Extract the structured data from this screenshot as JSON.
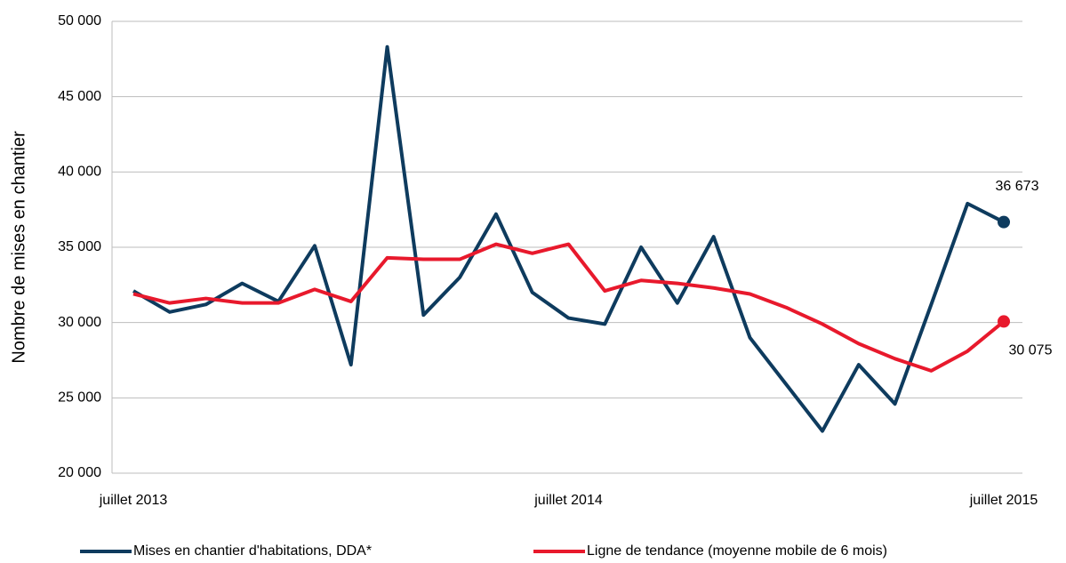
{
  "chart_data": {
    "type": "line",
    "y_label": "Nombre de mises en chantier",
    "categories": [
      "juillet 2013",
      null,
      null,
      null,
      null,
      null,
      null,
      null,
      null,
      null,
      null,
      null,
      "juillet 2014",
      null,
      null,
      null,
      null,
      null,
      null,
      null,
      null,
      null,
      null,
      null,
      "juillet 2015"
    ],
    "series": [
      {
        "name": "Mises en chantier d'habitations, DDA*",
        "color": "#0e3b5e",
        "values": [
          32100,
          30700,
          31200,
          32600,
          31400,
          35100,
          27200,
          48300,
          30500,
          33000,
          37200,
          32000,
          30300,
          29900,
          35000,
          31300,
          35700,
          29000,
          25900,
          22800,
          27200,
          24600,
          31200,
          37900,
          36673
        ],
        "value_labels": [
          null,
          null,
          null,
          null,
          null,
          null,
          null,
          null,
          null,
          null,
          null,
          null,
          null,
          null,
          null,
          null,
          null,
          null,
          null,
          null,
          null,
          null,
          null,
          null,
          "36 673"
        ]
      },
      {
        "name": "Ligne de tendance (moyenne mobile de 6 mois)",
        "color": "#e8192c",
        "values": [
          31900,
          31300,
          31600,
          31300,
          31300,
          32200,
          31400,
          34300,
          34200,
          34200,
          35200,
          34600,
          35200,
          32100,
          32800,
          32600,
          32300,
          31900,
          31000,
          29900,
          28600,
          27600,
          26800,
          28100,
          30075
        ],
        "value_labels": [
          null,
          null,
          null,
          null,
          null,
          null,
          null,
          null,
          null,
          null,
          null,
          null,
          null,
          null,
          null,
          null,
          null,
          null,
          null,
          null,
          null,
          null,
          null,
          null,
          "30 075"
        ]
      }
    ],
    "ylim": [
      20000,
      50000
    ],
    "yticks": [
      {
        "value": 20000,
        "label": "20 000"
      },
      {
        "value": 25000,
        "label": "25 000"
      },
      {
        "value": 30000,
        "label": "30 000"
      },
      {
        "value": 35000,
        "label": "35 000"
      },
      {
        "value": 40000,
        "label": "40 000"
      },
      {
        "value": 45000,
        "label": "45 000"
      },
      {
        "value": 50000,
        "label": "50 000"
      }
    ],
    "grid": true,
    "legend": "bottom"
  }
}
